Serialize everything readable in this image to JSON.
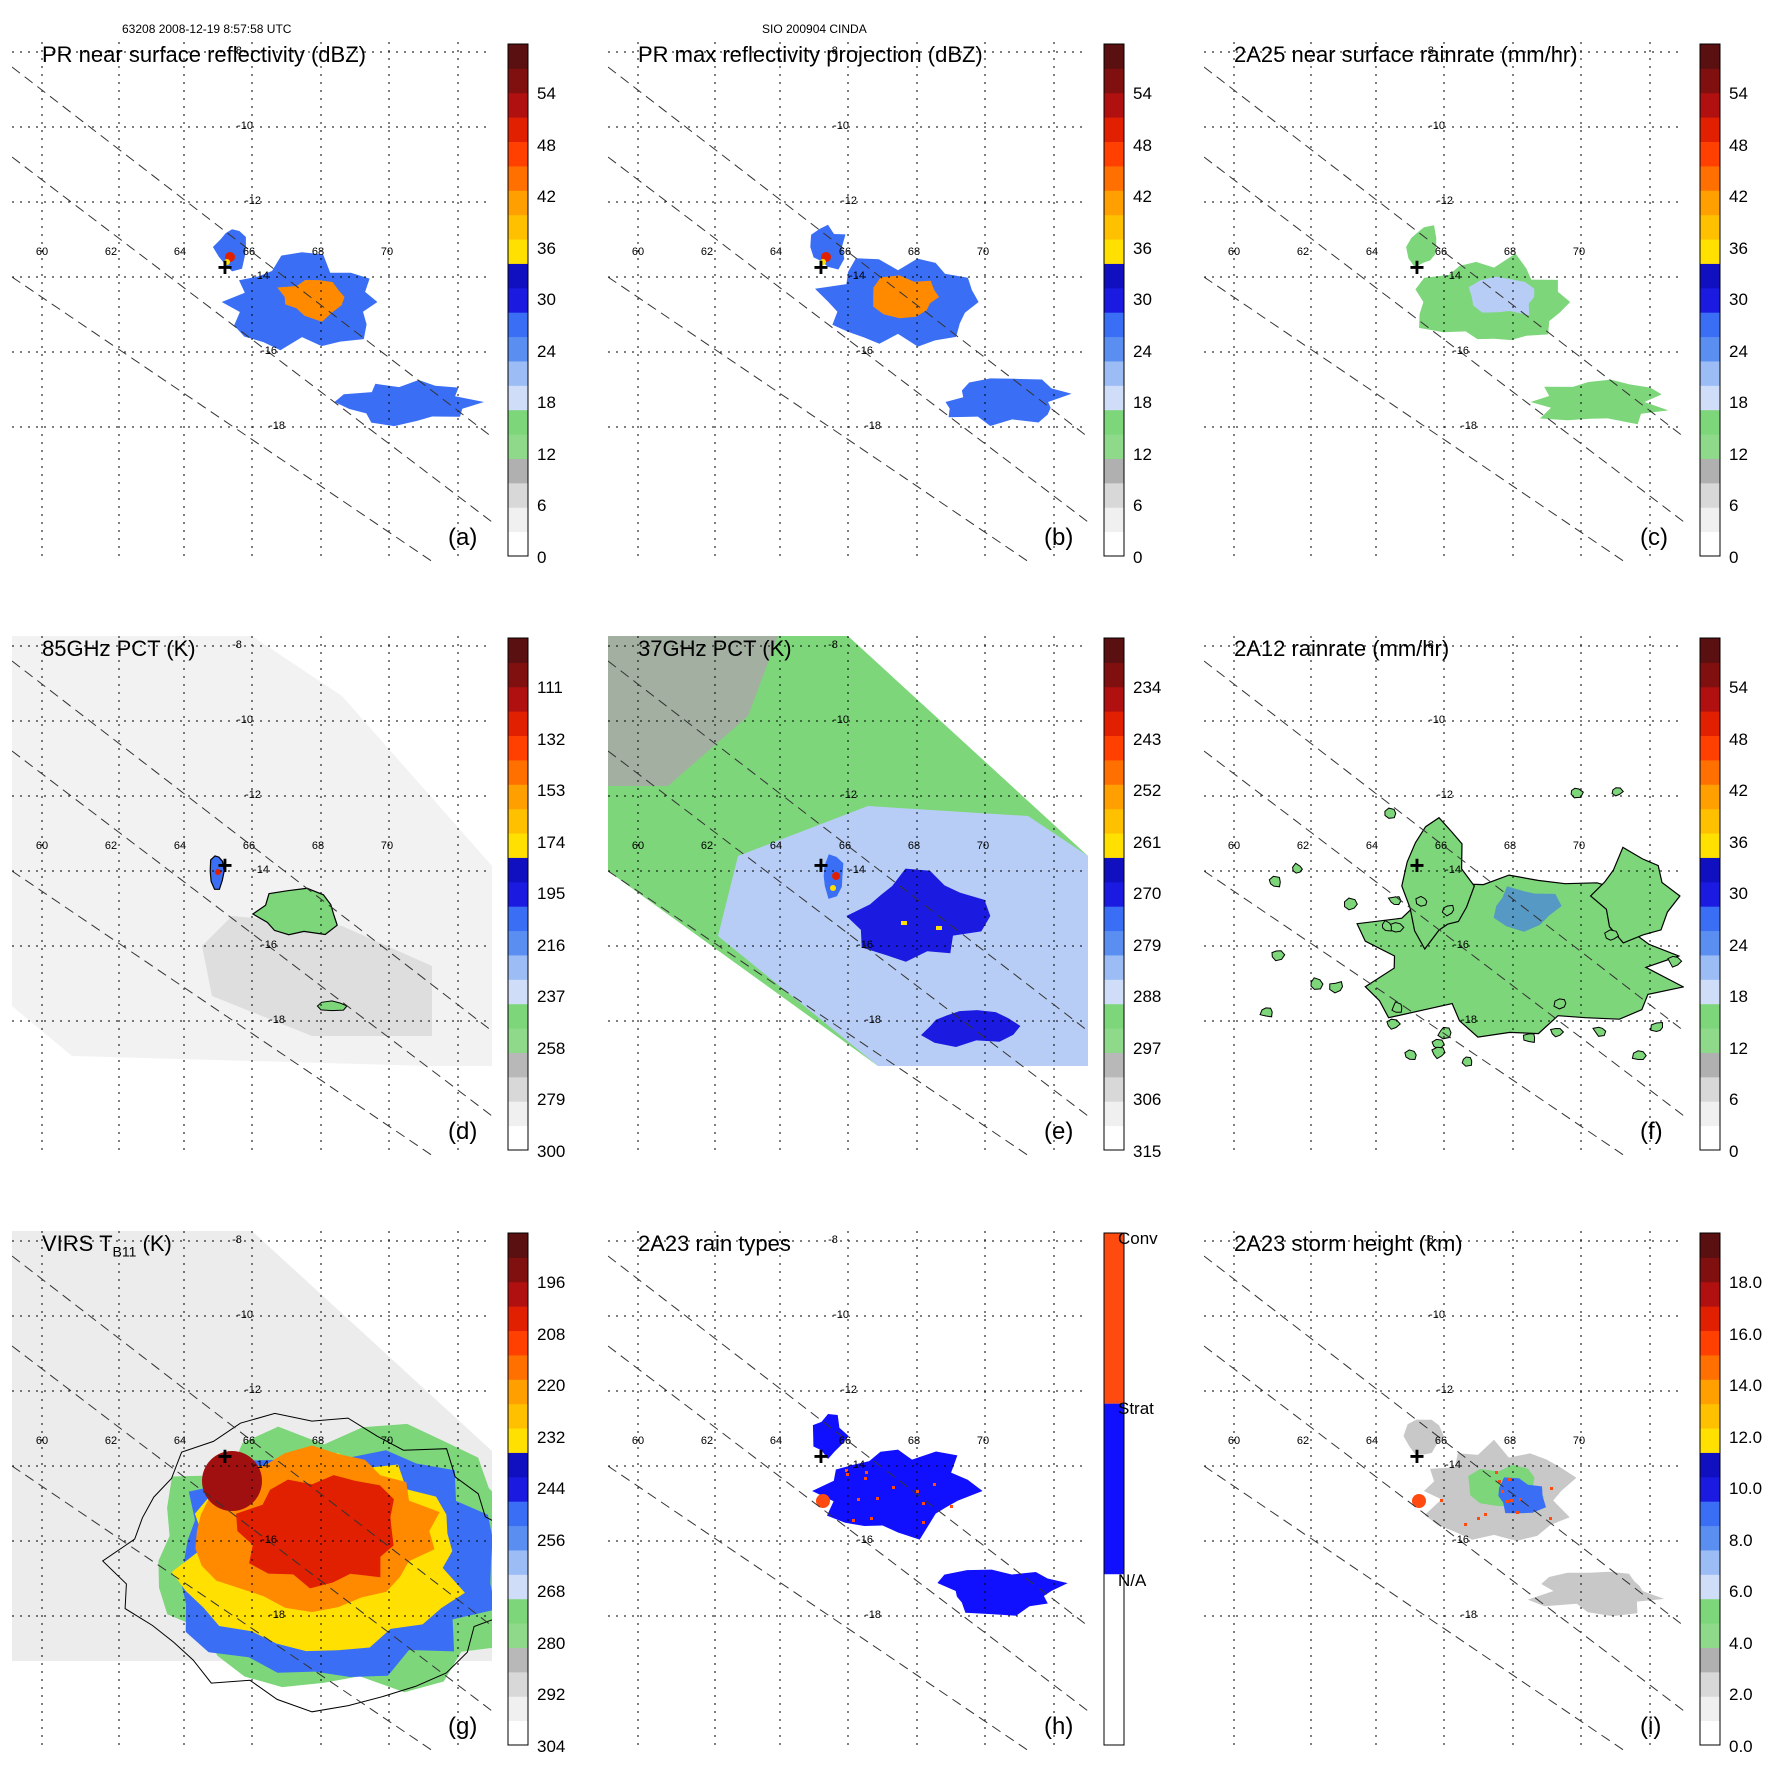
{
  "header": {
    "left": "63208 2008-12-19 8:57:58 UTC",
    "center": "SIO 200904 CINDA"
  },
  "colors": {
    "green": "#7dd67a",
    "light_blue": "#b8cdf5",
    "blue": "#3a6ff5",
    "deep_blue": "#1a1ae0",
    "yellow": "#ffe000",
    "orange": "#ff8a00",
    "red": "#e02000",
    "gray": "#c8c8c8",
    "conv": "#ff4a10",
    "strat": "#1010ff"
  },
  "map": {
    "lon_labels": [
      "60",
      "62",
      "64",
      "66",
      "68",
      "70"
    ],
    "lat_labels": [
      "-8",
      "-10",
      "-12",
      "-14",
      "-16",
      "-18"
    ],
    "marker": "+"
  },
  "chart_data": [
    {
      "type": "heatmap",
      "title": "PR near surface reflectivity (dBZ)",
      "panel_label": "(a)",
      "colorbar": {
        "units": "dBZ",
        "min": 0,
        "max": 60,
        "ticks": [
          "54",
          "48",
          "42",
          "36",
          "30",
          "24",
          "18",
          "12",
          "6",
          "0"
        ]
      }
    },
    {
      "type": "heatmap",
      "title": "PR max reflectivity projection (dBZ)",
      "panel_label": "(b)",
      "colorbar": {
        "units": "dBZ",
        "min": 0,
        "max": 60,
        "ticks": [
          "54",
          "48",
          "42",
          "36",
          "30",
          "24",
          "18",
          "12",
          "6",
          "0"
        ]
      }
    },
    {
      "type": "heatmap",
      "title": "2A25 near surface rainrate (mm/hr)",
      "panel_label": "(c)",
      "colorbar": {
        "units": "mm/hr",
        "min": 0,
        "max": 60,
        "ticks": [
          "54",
          "48",
          "42",
          "36",
          "30",
          "24",
          "18",
          "12",
          "6",
          "0"
        ]
      }
    },
    {
      "type": "heatmap",
      "title": "85GHz PCT (K)",
      "panel_label": "(d)",
      "colorbar": {
        "units": "K",
        "min": 90,
        "max": 300,
        "ticks": [
          "111",
          "132",
          "153",
          "174",
          "195",
          "216",
          "237",
          "258",
          "279",
          "300"
        ]
      }
    },
    {
      "type": "heatmap",
      "title": "37GHz PCT (K)",
      "panel_label": "(e)",
      "colorbar": {
        "units": "K",
        "min": 225,
        "max": 315,
        "ticks": [
          "234",
          "243",
          "252",
          "261",
          "270",
          "279",
          "288",
          "297",
          "306",
          "315"
        ]
      }
    },
    {
      "type": "heatmap",
      "title": "2A12 rainrate (mm/hr)",
      "panel_label": "(f)",
      "colorbar": {
        "units": "mm/hr",
        "min": 0,
        "max": 60,
        "ticks": [
          "54",
          "48",
          "42",
          "36",
          "30",
          "24",
          "18",
          "12",
          "6",
          "0"
        ]
      }
    },
    {
      "type": "heatmap",
      "title": "VIRS T",
      "title_sub": "B11",
      "title_units": " (K)",
      "panel_label": "(g)",
      "colorbar": {
        "units": "K",
        "min": 184,
        "max": 304,
        "ticks": [
          "196",
          "208",
          "220",
          "232",
          "244",
          "256",
          "268",
          "280",
          "292",
          "304"
        ]
      }
    },
    {
      "type": "heatmap",
      "title": "2A23 rain types",
      "panel_label": "(h)",
      "colorbar": {
        "categorical": true,
        "ticks": [
          "Conv",
          "Strat",
          "N/A"
        ]
      }
    },
    {
      "type": "heatmap",
      "title": "2A23 storm height (km)",
      "panel_label": "(i)",
      "colorbar": {
        "units": "km",
        "min": 0,
        "max": 20,
        "ticks": [
          "18.0",
          "16.0",
          "14.0",
          "12.0",
          "10.0",
          "8.0",
          "6.0",
          "4.0",
          "2.0",
          "0.0"
        ]
      }
    }
  ]
}
